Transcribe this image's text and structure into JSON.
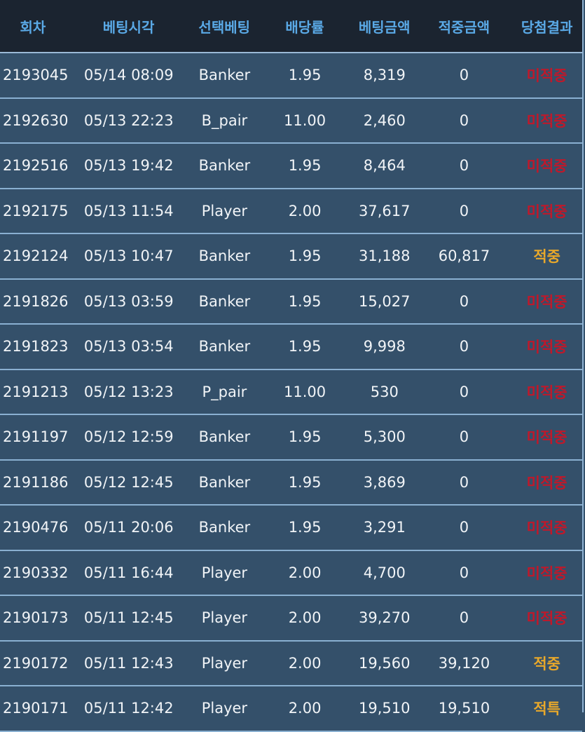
{
  "header": [
    "회차",
    "베팅시각",
    "선택베팅",
    "배당률",
    "베팅금액",
    "적중금액",
    "당첨결과"
  ],
  "colors": {
    "header_bg": "#1b2430",
    "header_text": "#5aa9e6",
    "row_bg": "#34506a",
    "lose": "#c0182a",
    "win": "#e8a82a"
  },
  "rows": [
    [
      "2193045",
      "05/14 08:09",
      "Banker",
      "1.95",
      "8,319",
      "0",
      "미적중"
    ],
    [
      "2192630",
      "05/13 22:23",
      "B_pair",
      "11.00",
      "2,460",
      "0",
      "미적중"
    ],
    [
      "2192516",
      "05/13 19:42",
      "Banker",
      "1.95",
      "8,464",
      "0",
      "미적중"
    ],
    [
      "2192175",
      "05/13 11:54",
      "Player",
      "2.00",
      "37,617",
      "0",
      "미적중"
    ],
    [
      "2192124",
      "05/13 10:47",
      "Banker",
      "1.95",
      "31,188",
      "60,817",
      "적중"
    ],
    [
      "2191826",
      "05/13 03:59",
      "Banker",
      "1.95",
      "15,027",
      "0",
      "미적중"
    ],
    [
      "2191823",
      "05/13 03:54",
      "Banker",
      "1.95",
      "9,998",
      "0",
      "미적중"
    ],
    [
      "2191213",
      "05/12 13:23",
      "P_pair",
      "11.00",
      "530",
      "0",
      "미적중"
    ],
    [
      "2191197",
      "05/12 12:59",
      "Banker",
      "1.95",
      "5,300",
      "0",
      "미적중"
    ],
    [
      "2191186",
      "05/12 12:45",
      "Banker",
      "1.95",
      "3,869",
      "0",
      "미적중"
    ],
    [
      "2190476",
      "05/11 20:06",
      "Banker",
      "1.95",
      "3,291",
      "0",
      "미적중"
    ],
    [
      "2190332",
      "05/11 16:44",
      "Player",
      "2.00",
      "4,700",
      "0",
      "미적중"
    ],
    [
      "2190173",
      "05/11 12:45",
      "Player",
      "2.00",
      "39,270",
      "0",
      "미적중"
    ],
    [
      "2190172",
      "05/11 12:43",
      "Player",
      "2.00",
      "19,560",
      "39,120",
      "적중"
    ],
    [
      "2190171",
      "05/11 12:42",
      "Player",
      "2.00",
      "19,510",
      "19,510",
      "적특"
    ]
  ]
}
